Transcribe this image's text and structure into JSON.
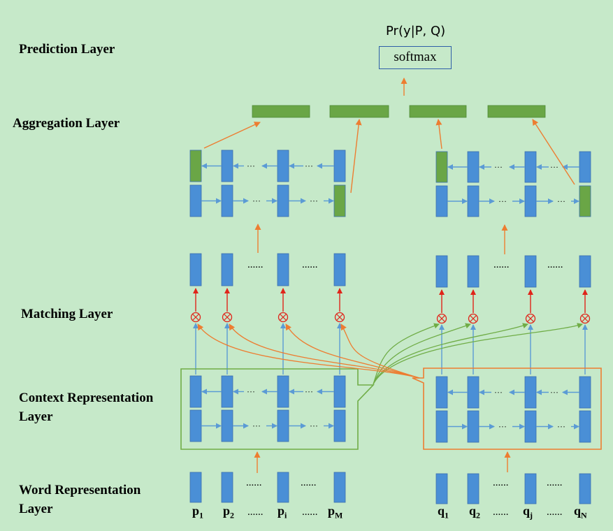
{
  "layers": {
    "prediction": "Prediction Layer",
    "aggregation": "Aggregation Layer",
    "matching": "Matching Layer",
    "context_1": "Context Representation",
    "context_2": "Layer",
    "word_1": "Word Representation",
    "word_2": "Layer"
  },
  "prediction": {
    "title": "Pr(y|P, Q)",
    "softmax": "softmax"
  },
  "tokens": {
    "p": [
      {
        "base": "p",
        "sub": "1"
      },
      {
        "base": "p",
        "sub": "2"
      },
      {
        "base": "p",
        "sub": "i"
      },
      {
        "base": "p",
        "sub": "M"
      }
    ],
    "q": [
      {
        "base": "q",
        "sub": "1"
      },
      {
        "base": "q",
        "sub": "2"
      },
      {
        "base": "q",
        "sub": "j"
      },
      {
        "base": "q",
        "sub": "N"
      }
    ],
    "ellipsis_long": "......",
    "ellipsis_short": "···"
  },
  "colors": {
    "background": "#c6e9c9",
    "vector_blue": "#4a8fd6",
    "vector_green": "#6aa646",
    "arrow_blue": "#5b9bd5",
    "arrow_orange": "#ed7d31",
    "arrow_red": "#e0241a",
    "curve_green": "#70ad47",
    "box_green": "#70ad47",
    "box_orange": "#ed7d31",
    "softmax_border": "#2e5fa8"
  }
}
